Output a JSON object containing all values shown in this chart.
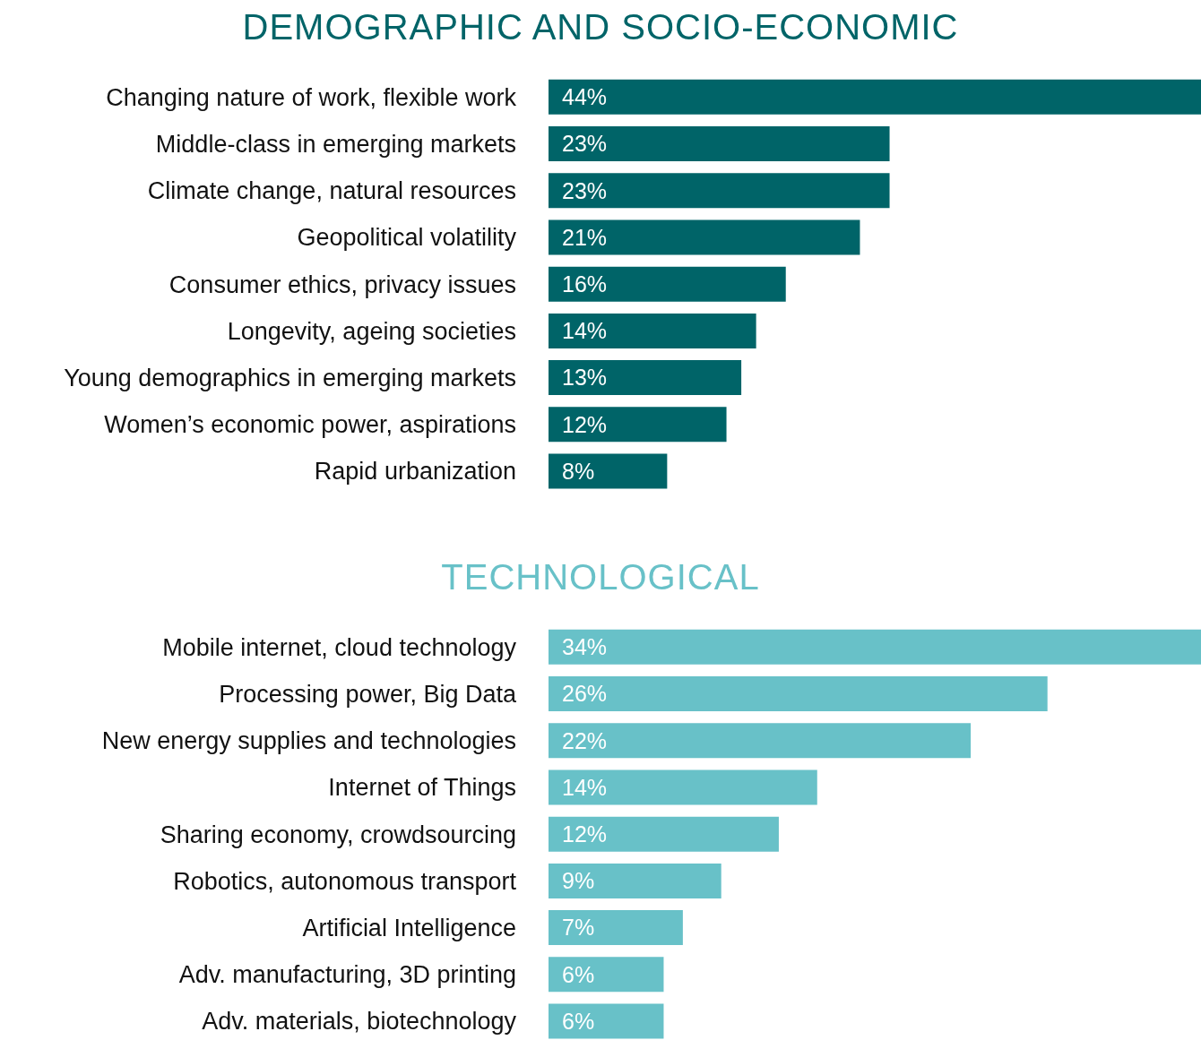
{
  "chart_data": [
    {
      "type": "bar",
      "orientation": "horizontal",
      "title": "DEMOGRAPHIC AND SOCIO-ECONOMIC",
      "categories": [
        "Changing nature of work, flexible work",
        "Middle-class in emerging markets",
        "Climate change, natural resources",
        "Geopolitical volatility",
        "Consumer ethics, privacy issues",
        "Longevity, ageing societies",
        "Young demographics in emerging markets",
        "Women’s economic power, aspirations",
        "Rapid urbanization"
      ],
      "values": [
        44,
        23,
        23,
        21,
        16,
        14,
        13,
        12,
        8
      ],
      "value_labels": [
        "44%",
        "23%",
        "23%",
        "21%",
        "16%",
        "14%",
        "13%",
        "12%",
        "8%"
      ],
      "color": "#006468",
      "tick_labels": "y"
    },
    {
      "type": "bar",
      "orientation": "horizontal",
      "title": "TECHNOLOGICAL",
      "categories": [
        "Mobile internet, cloud technology",
        "Processing power, Big Data",
        "New energy supplies and technologies",
        "Internet of Things",
        "Sharing economy, crowdsourcing",
        "Robotics, autonomous transport",
        "Artificial Intelligence",
        "Adv. manufacturing, 3D printing",
        "Adv. materials, biotechnology"
      ],
      "values": [
        34,
        26,
        22,
        14,
        12,
        9,
        7,
        6,
        6
      ],
      "value_labels": [
        "34%",
        "26%",
        "22%",
        "14%",
        "12%",
        "9%",
        "7%",
        "6%",
        "6%"
      ],
      "color": "#68c1c8",
      "tick_labels": "y"
    }
  ]
}
